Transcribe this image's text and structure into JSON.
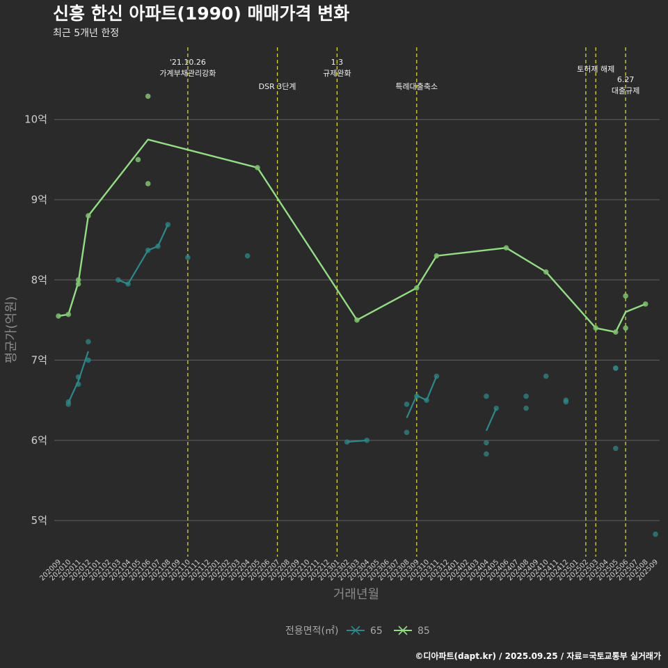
{
  "chart_data": {
    "type": "line",
    "title": "신흥 한신 아파트(1990) 매매가격 변화",
    "subtitle": "최근 5개년 한정",
    "xlabel": "거래년월",
    "ylabel": "평균가(억원)",
    "caption": "©디아파트(dapt.kr) / 2025.09.25 / 자료=국토교통부 실거래가",
    "ylim": [
      4.55,
      10.9
    ],
    "y_ticks": [
      5,
      6,
      7,
      8,
      9,
      10
    ],
    "y_tick_labels": [
      "5억",
      "6억",
      "7억",
      "8억",
      "9억",
      "10억"
    ],
    "grid": true,
    "months": [
      "202009",
      "202010",
      "202011",
      "202012",
      "202101",
      "202102",
      "202103",
      "202104",
      "202105",
      "202106",
      "202107",
      "202108",
      "202109",
      "202110",
      "202111",
      "202112",
      "202201",
      "202202",
      "202203",
      "202204",
      "202205",
      "202206",
      "202207",
      "202208",
      "202209",
      "202210",
      "202211",
      "202212",
      "202301",
      "202302",
      "202303",
      "202304",
      "202305",
      "202306",
      "202307",
      "202308",
      "202309",
      "202310",
      "202311",
      "202312",
      "202401",
      "202402",
      "202403",
      "202404",
      "202405",
      "202406",
      "202407",
      "202408",
      "202409",
      "202410",
      "202411",
      "202412",
      "202501",
      "202502",
      "202503",
      "202504",
      "202505",
      "202506",
      "202507",
      "202508",
      "202509"
    ],
    "legend": {
      "title": "전용면적(㎡)",
      "placement": "bottom",
      "entries": [
        {
          "name": "65",
          "color": "#2a8a8a"
        },
        {
          "name": "85",
          "color": "#90e080"
        }
      ]
    },
    "annotations": [
      {
        "x": "202110",
        "lines": [
          "'21.10.26",
          "가계부채관리강화"
        ],
        "row": "top"
      },
      {
        "x": "202207",
        "lines": [
          "DSR 3단계"
        ],
        "row": "low"
      },
      {
        "x": "202301",
        "lines": [
          "1.3",
          "규제완화"
        ],
        "row": "top"
      },
      {
        "x": "202309",
        "lines": [
          "특례대출축소"
        ],
        "row": "low"
      },
      {
        "x": "202502",
        "lines": [],
        "row": "top"
      },
      {
        "x": "202503",
        "lines": [
          "토허제 해제"
        ],
        "row": "mid"
      },
      {
        "x": "202506",
        "lines": [
          "6.27",
          "대출규제"
        ],
        "row": "low2"
      }
    ],
    "series": [
      {
        "name": "85",
        "color": "#90e080",
        "line": [
          [
            "202009",
            7.55
          ],
          [
            "202010",
            7.57
          ],
          [
            "202011",
            7.97
          ],
          [
            "202012",
            8.8
          ],
          [
            "202106",
            9.75
          ],
          [
            "202205",
            9.4
          ],
          [
            "202303",
            7.5
          ],
          [
            "202309",
            7.9
          ],
          [
            "202311",
            8.3
          ],
          [
            "202406",
            8.4
          ],
          [
            "202410",
            8.1
          ],
          [
            "202503",
            7.4
          ],
          [
            "202505",
            7.35
          ],
          [
            "202506",
            7.6
          ],
          [
            "202508",
            7.7
          ]
        ],
        "points": [
          [
            "202009",
            7.55
          ],
          [
            "202010",
            7.57
          ],
          [
            "202011",
            8.0
          ],
          [
            "202011",
            7.95
          ],
          [
            "202012",
            8.8
          ],
          [
            "202105",
            9.5
          ],
          [
            "202106",
            10.29
          ],
          [
            "202106",
            9.2
          ],
          [
            "202205",
            9.4
          ],
          [
            "202303",
            7.5
          ],
          [
            "202309",
            7.9
          ],
          [
            "202311",
            8.3
          ],
          [
            "202406",
            8.4
          ],
          [
            "202410",
            8.1
          ],
          [
            "202503",
            7.4
          ],
          [
            "202505",
            7.35
          ],
          [
            "202506",
            7.8
          ],
          [
            "202506",
            7.4
          ],
          [
            "202508",
            7.7
          ]
        ]
      },
      {
        "name": "65",
        "color": "#2a8a8a",
        "segments": [
          [
            [
              "202010",
              6.47
            ],
            [
              "202011",
              6.74
            ],
            [
              "202012",
              7.11
            ]
          ],
          [
            [
              "202103",
              8.0
            ],
            [
              "202104",
              7.95
            ],
            [
              "202106",
              8.37
            ],
            [
              "202107",
              8.42
            ],
            [
              "202108",
              8.69
            ]
          ],
          [
            [
              "202302",
              5.98
            ],
            [
              "202304",
              6.0
            ]
          ],
          [
            [
              "202308",
              6.28
            ],
            [
              "202309",
              6.56
            ],
            [
              "202310",
              6.5
            ],
            [
              "202311",
              6.8
            ]
          ],
          [
            [
              "202404",
              6.12
            ],
            [
              "202405",
              6.4
            ]
          ]
        ],
        "points": [
          [
            "202010",
            6.48
          ],
          [
            "202010",
            6.45
          ],
          [
            "202011",
            6.79
          ],
          [
            "202011",
            6.7
          ],
          [
            "202012",
            7.23
          ],
          [
            "202012",
            7.0
          ],
          [
            "202103",
            8.0
          ],
          [
            "202104",
            7.95
          ],
          [
            "202106",
            8.37
          ],
          [
            "202107",
            8.42
          ],
          [
            "202108",
            8.69
          ],
          [
            "202110",
            8.28
          ],
          [
            "202204",
            8.3
          ],
          [
            "202302",
            5.98
          ],
          [
            "202304",
            6.0
          ],
          [
            "202308",
            6.45
          ],
          [
            "202308",
            6.1
          ],
          [
            "202309",
            6.55
          ],
          [
            "202310",
            6.5
          ],
          [
            "202311",
            6.8
          ],
          [
            "202404",
            6.55
          ],
          [
            "202404",
            5.97
          ],
          [
            "202404",
            5.83
          ],
          [
            "202405",
            6.4
          ],
          [
            "202408",
            6.55
          ],
          [
            "202408",
            6.4
          ],
          [
            "202410",
            6.8
          ],
          [
            "202412",
            6.5
          ],
          [
            "202412",
            6.48
          ],
          [
            "202505",
            6.9
          ],
          [
            "202505",
            6.9
          ],
          [
            "202505",
            5.9
          ],
          [
            "202509",
            4.83
          ]
        ]
      }
    ]
  }
}
